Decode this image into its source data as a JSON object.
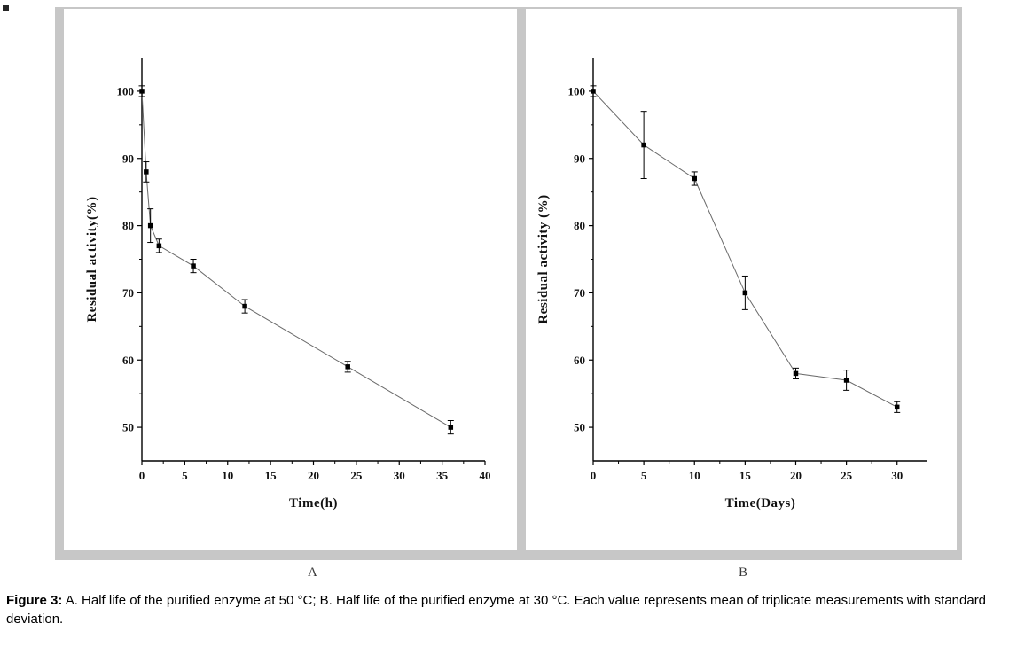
{
  "figure": {
    "panel_a_label": "A",
    "panel_b_label": "B",
    "caption_label": "Figure 3:",
    "caption_text": "A. Half life of the purified enzyme at 50 °C; B. Half life of the purified enzyme at 30 °C. Each value represents mean of triplicate measurements with standard deviation."
  },
  "chart_data": [
    {
      "type": "line",
      "panel": "A",
      "title": "",
      "xlabel": "Time(h)",
      "ylabel": "Residual activity(%)",
      "xlim": [
        0,
        40
      ],
      "ylim": [
        45,
        105
      ],
      "xticks": [
        0,
        5,
        10,
        15,
        20,
        25,
        30,
        35,
        40
      ],
      "yticks": [
        50,
        60,
        70,
        80,
        90,
        100
      ],
      "x": [
        0,
        0.5,
        1,
        2,
        6,
        12,
        24,
        36
      ],
      "y": [
        100,
        88,
        80,
        77,
        74,
        68,
        59,
        50
      ],
      "yerr": [
        0.8,
        1.5,
        2.5,
        1,
        1,
        1,
        0.8,
        1
      ],
      "marker": "square",
      "marker_color": "#000000",
      "line_color": "#6a6a6a",
      "axis_color": "#000000",
      "grid": false,
      "legend": "none"
    },
    {
      "type": "line",
      "panel": "B",
      "title": "",
      "xlabel": "Time(Days)",
      "ylabel": "Residual activity (%)",
      "xlim": [
        0,
        33
      ],
      "ylim": [
        45,
        105
      ],
      "xticks": [
        0,
        5,
        10,
        15,
        20,
        25,
        30
      ],
      "yticks": [
        50,
        60,
        70,
        80,
        90,
        100
      ],
      "x": [
        0,
        5,
        10,
        15,
        20,
        25,
        30
      ],
      "y": [
        100,
        92,
        87,
        70,
        58,
        57,
        53
      ],
      "yerr": [
        0.8,
        5,
        1,
        2.5,
        0.8,
        1.5,
        0.8
      ],
      "marker": "square",
      "marker_color": "#000000",
      "line_color": "#6a6a6a",
      "axis_color": "#000000",
      "grid": false,
      "legend": "none"
    }
  ]
}
